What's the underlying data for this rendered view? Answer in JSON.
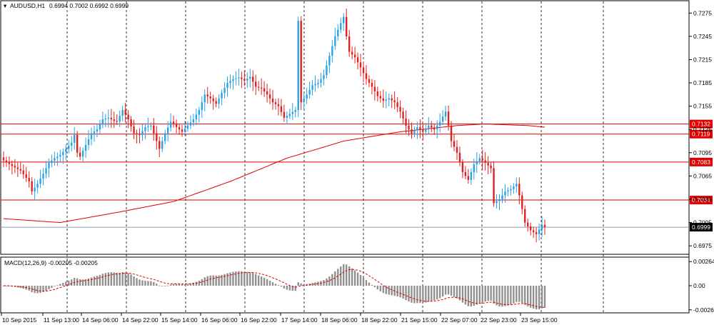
{
  "chart_data": [
    {
      "type": "candlestick",
      "symbol_label": "AUDUSD,H1",
      "ohlc_label": "0.6994 0.7002 0.6992 0.6999",
      "ylim": [
        0.6965,
        0.729
      ],
      "y_ticks": [
        "0.7275",
        "0.7245",
        "0.7215",
        "0.7185",
        "0.7155",
        "0.7125",
        "0.7095",
        "0.7065",
        "0.7035",
        "0.7005",
        "0.6975"
      ],
      "x_ticks": [
        "10 Sep 2015",
        "11 Sep 13:00",
        "14 Sep 06:00",
        "14 Sep 22:00",
        "15 Sep 14:00",
        "16 Sep 06:00",
        "16 Sep 22:00",
        "17 Sep 14:00",
        "18 Sep 06:00",
        "18 Sep 22:00",
        "21 Sep 15:00",
        "22 Sep 07:00",
        "22 Sep 23:00",
        "23 Sep 15:00"
      ],
      "horizontal_levels": [
        {
          "value": 0.7132,
          "label": "0.7132"
        },
        {
          "value": 0.7119,
          "label": "0.7119"
        },
        {
          "value": 0.7083,
          "label": "0.7083"
        },
        {
          "value": 0.7034,
          "label": "0.7034"
        }
      ],
      "current_price": {
        "value": 0.6999,
        "label": "0.6999"
      },
      "close_path": [
        [
          0,
          0.7085
        ],
        [
          3,
          0.7078
        ],
        [
          6,
          0.7072
        ],
        [
          9,
          0.7058
        ],
        [
          10,
          0.7045
        ],
        [
          12,
          0.7055
        ],
        [
          14,
          0.7068
        ],
        [
          16,
          0.7082
        ],
        [
          18,
          0.7088
        ],
        [
          20,
          0.7092
        ],
        [
          22,
          0.71
        ],
        [
          24,
          0.7108
        ],
        [
          25,
          0.7118
        ],
        [
          26,
          0.7095
        ],
        [
          27,
          0.709
        ],
        [
          29,
          0.7105
        ],
        [
          31,
          0.712
        ],
        [
          33,
          0.7125
        ],
        [
          35,
          0.7138
        ],
        [
          37,
          0.714
        ],
        [
          39,
          0.7136
        ],
        [
          40,
          0.7135
        ],
        [
          42,
          0.715
        ],
        [
          44,
          0.7138
        ],
        [
          46,
          0.712
        ],
        [
          48,
          0.7118
        ],
        [
          50,
          0.7128
        ],
        [
          52,
          0.713
        ],
        [
          53,
          0.712
        ],
        [
          55,
          0.71
        ],
        [
          57,
          0.712
        ],
        [
          59,
          0.7135
        ],
        [
          61,
          0.7128
        ],
        [
          63,
          0.7122
        ],
        [
          65,
          0.713
        ],
        [
          67,
          0.7138
        ],
        [
          69,
          0.715
        ],
        [
          71,
          0.717
        ],
        [
          73,
          0.7165
        ],
        [
          75,
          0.7158
        ],
        [
          77,
          0.7172
        ],
        [
          79,
          0.7185
        ],
        [
          81,
          0.719
        ],
        [
          83,
          0.7192
        ],
        [
          85,
          0.7188
        ],
        [
          87,
          0.7193
        ],
        [
          89,
          0.718
        ],
        [
          91,
          0.7178
        ],
        [
          93,
          0.717
        ],
        [
          95,
          0.716
        ],
        [
          97,
          0.7155
        ],
        [
          99,
          0.714
        ],
        [
          101,
          0.7145
        ],
        [
          103,
          0.715
        ],
        [
          104,
          0.7265
        ],
        [
          105,
          0.716
        ],
        [
          107,
          0.717
        ],
        [
          109,
          0.7182
        ],
        [
          111,
          0.7185
        ],
        [
          113,
          0.7195
        ],
        [
          115,
          0.722
        ],
        [
          117,
          0.7245
        ],
        [
          119,
          0.7262
        ],
        [
          120,
          0.727
        ],
        [
          121,
          0.7245
        ],
        [
          122,
          0.7225
        ],
        [
          124,
          0.7218
        ],
        [
          126,
          0.7205
        ],
        [
          128,
          0.719
        ],
        [
          130,
          0.718
        ],
        [
          132,
          0.7168
        ],
        [
          134,
          0.7162
        ],
        [
          136,
          0.7165
        ],
        [
          138,
          0.716
        ],
        [
          140,
          0.7148
        ],
        [
          142,
          0.713
        ],
        [
          144,
          0.712
        ],
        [
          146,
          0.7128
        ],
        [
          148,
          0.7122
        ],
        [
          150,
          0.713
        ],
        [
          152,
          0.7125
        ],
        [
          154,
          0.7135
        ],
        [
          156,
          0.7148
        ],
        [
          157,
          0.713
        ],
        [
          158,
          0.711
        ],
        [
          160,
          0.7095
        ],
        [
          162,
          0.707
        ],
        [
          164,
          0.706
        ],
        [
          166,
          0.708
        ],
        [
          168,
          0.7088
        ],
        [
          170,
          0.7082
        ],
        [
          172,
          0.7075
        ],
        [
          173,
          0.703
        ],
        [
          175,
          0.7035
        ],
        [
          177,
          0.7045
        ],
        [
          179,
          0.7048
        ],
        [
          181,
          0.7055
        ],
        [
          182,
          0.704
        ],
        [
          184,
          0.7005
        ],
        [
          186,
          0.6995
        ],
        [
          188,
          0.699
        ],
        [
          190,
          0.7002
        ],
        [
          191,
          0.6999
        ]
      ],
      "ma_path": [
        [
          0,
          0.701
        ],
        [
          20,
          0.7005
        ],
        [
          40,
          0.7018
        ],
        [
          60,
          0.7032
        ],
        [
          80,
          0.7058
        ],
        [
          100,
          0.7088
        ],
        [
          120,
          0.711
        ],
        [
          140,
          0.7122
        ],
        [
          160,
          0.713
        ],
        [
          170,
          0.7132
        ],
        [
          185,
          0.713
        ],
        [
          191,
          0.7128
        ]
      ]
    },
    {
      "type": "histogram",
      "label": "MACD(12,26,9) -0.00205 -0.00205",
      "ylim": [
        -0.0029,
        0.00305
      ],
      "y_ticks": [
        "0.00264",
        "0.00",
        "-0.00265"
      ]
    }
  ]
}
